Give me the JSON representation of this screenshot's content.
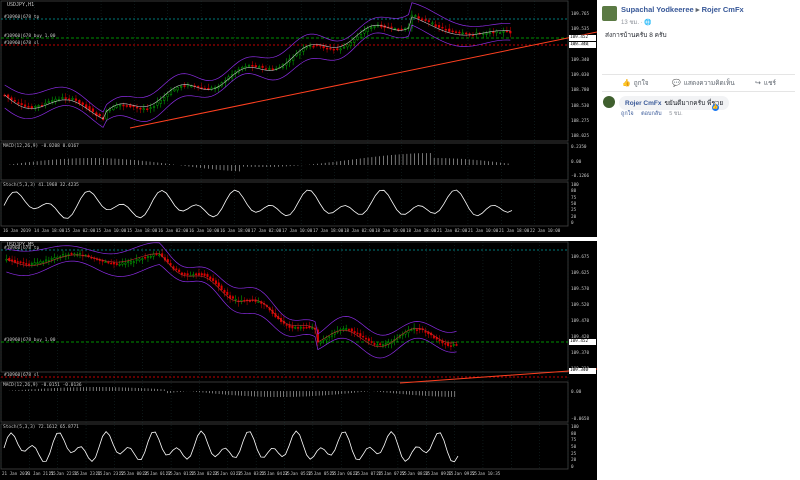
{
  "top_chart": {
    "title": "USDJPY,H1",
    "order_lines": [
      "#10960|678 tp",
      "#10960|678 buy 1.00",
      "#10960|678 sl"
    ],
    "price_scale": [
      "109.765",
      "109.535",
      "109.450",
      "109.340",
      "109.030",
      "108.780",
      "108.530",
      "108.275",
      "108.025"
    ],
    "price_tags": {
      "upper": "109.452",
      "lower": "109.340"
    },
    "macd_label": "MACD(12,26,9) -0.0208 0.0167",
    "macd_scale": [
      "0.2350",
      "0.00",
      "-0.1266"
    ],
    "stoch_label": "Stoch(5,3,3) 41.1968 32.4235",
    "stoch_scale": [
      "100",
      "80",
      "75",
      "50",
      "25",
      "20",
      "0"
    ],
    "time_axis": [
      "16 Jan 2019",
      "14 Jan 18:00",
      "15 Jan 02:00",
      "15 Jan 10:00",
      "15 Jan 18:00",
      "16 Jan 02:00",
      "16 Jan 10:00",
      "16 Jan 18:00",
      "17 Jan 02:00",
      "17 Jan 10:00",
      "17 Jan 18:00",
      "18 Jan 02:00",
      "18 Jan 10:00",
      "18 Jan 18:00",
      "21 Jan 02:00",
      "21 Jan 10:00",
      "21 Jan 18:00",
      "22 Jan 10:00"
    ]
  },
  "bottom_chart": {
    "title": "USDJPY,M5",
    "order_lines": [
      "#10960|678 tp",
      "#10960|678 buy 1.00",
      "#10960|678 sl"
    ],
    "price_scale": [
      "109.675",
      "109.625",
      "109.570",
      "109.520",
      "109.470",
      "109.420",
      "109.370",
      "109.320"
    ],
    "price_tags": {
      "upper": "109.452",
      "lower": "109.340"
    },
    "macd_label": "MACD(12,26,9) -0.0151 -0.0136",
    "macd_scale": [
      "0.00",
      "-0.0658"
    ],
    "stoch_label": "Stoch(5,3,3) 72.1612 65.8771",
    "stoch_scale": [
      "100",
      "80",
      "75",
      "50",
      "25",
      "20",
      "0"
    ],
    "time_axis": [
      "21 Jan 2019",
      "21 Jan 21:55",
      "21 Jan 22:35",
      "21 Jan 23:15",
      "21 Jan 23:55",
      "22 Jan 00:35",
      "22 Jan 01:15",
      "22 Jan 01:55",
      "22 Jan 02:35",
      "22 Jan 03:15",
      "22 Jan 03:55",
      "22 Jan 04:35",
      "22 Jan 05:15",
      "22 Jan 05:55",
      "22 Jan 06:35",
      "22 Jan 07:15",
      "22 Jan 07:55",
      "22 Jan 08:35",
      "22 Jan 09:15",
      "22 Jan 09:55",
      "22 Jan 10:35"
    ]
  },
  "colors": {
    "bull": "#00c000",
    "bear": "#e00000",
    "grid": "#1f3a3a",
    "trendline": "#ff4020",
    "bands": "#8a2be2",
    "ma": "#c0c0c0",
    "text": "#c8c8c8",
    "tag_bg": "#ffffff"
  },
  "post": {
    "author": "Supachal Yodkeeree",
    "arrow": "▸",
    "group": "Rojer CmFx",
    "meta": "13 ชม. · 🌐",
    "text": "ส่งการบ้านครับ 8 ครับ",
    "actions": {
      "like": "ถูกใจ",
      "comment": "แสดงความคิดเห็น",
      "share": "แชร์"
    },
    "comment": {
      "author": "Rojer CmFx",
      "text": "ขยันดีมากครับ พี่ชาย",
      "like": "ถูกใจ",
      "reply": "ตอบกลับ",
      "time": "5 ชม."
    }
  }
}
